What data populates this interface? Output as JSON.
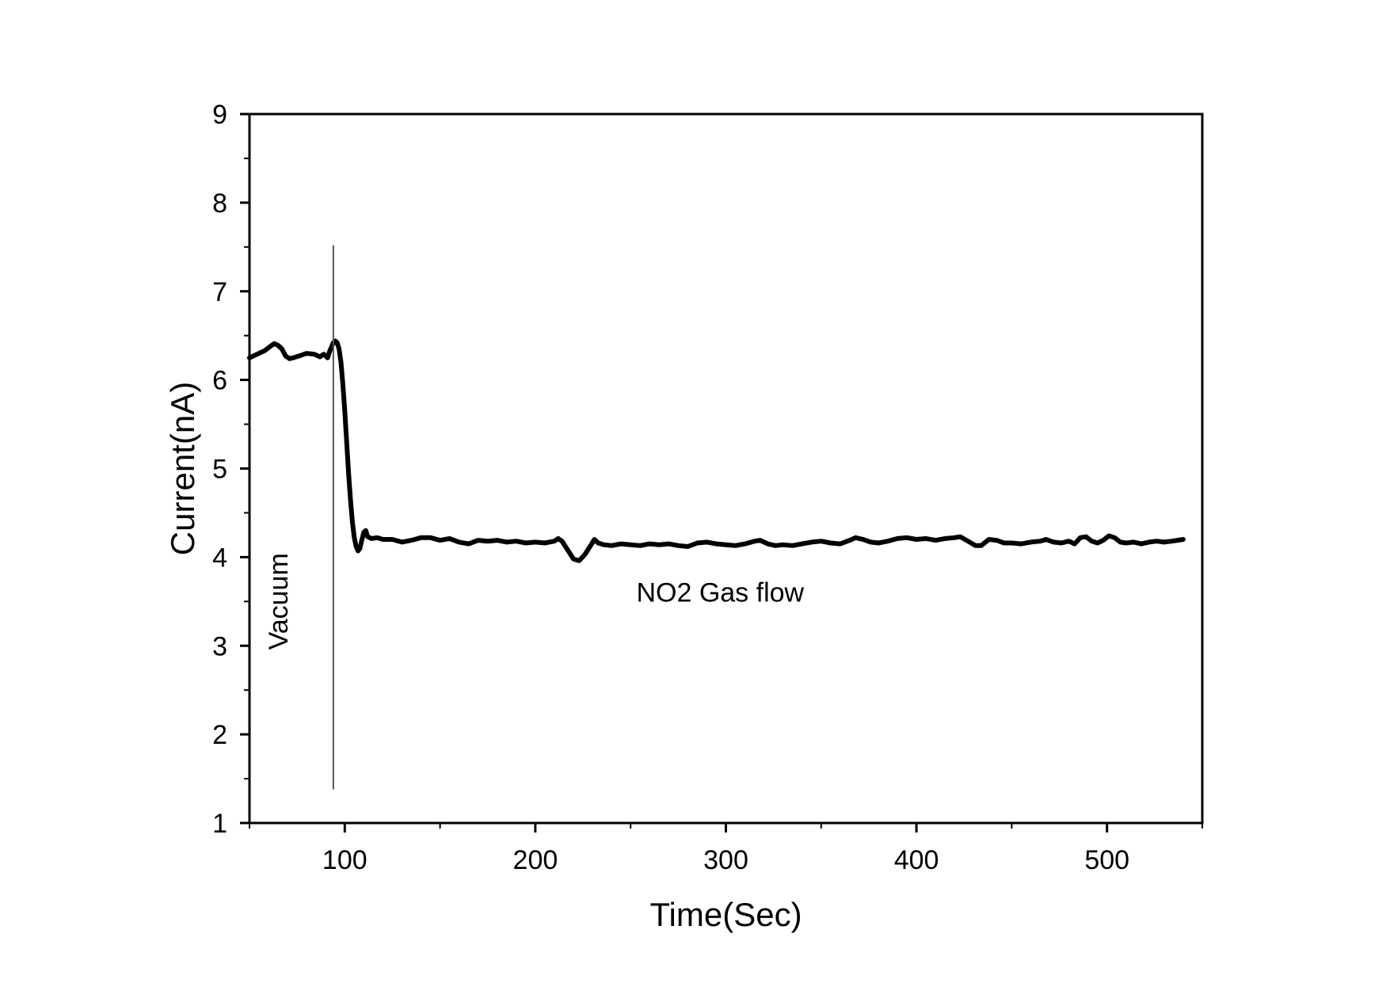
{
  "chart_data": {
    "type": "line",
    "title": "",
    "xlabel": "Time(Sec)",
    "ylabel": "Current(nA)",
    "xlim": [
      50,
      550
    ],
    "ylim": [
      1,
      9
    ],
    "xticks": [
      100,
      200,
      300,
      400,
      500
    ],
    "xticks_minor": [
      50,
      150,
      250,
      350,
      450,
      550
    ],
    "yticks": [
      1,
      2,
      3,
      4,
      5,
      6,
      7,
      8,
      9
    ],
    "grid": false,
    "legend": "none",
    "line_color": "#000000",
    "series": [
      {
        "name": "",
        "x": [
          50,
          54,
          58,
          61,
          63,
          65,
          67,
          69,
          71,
          73,
          76,
          80,
          84,
          87,
          89,
          91,
          92,
          94,
          95,
          96,
          97,
          98,
          99,
          100,
          101,
          102,
          103,
          104,
          105,
          106,
          107,
          108,
          109,
          110,
          111,
          112,
          114,
          117,
          120,
          125,
          130,
          135,
          140,
          145,
          150,
          155,
          160,
          165,
          170,
          175,
          180,
          185,
          190,
          195,
          200,
          205,
          210,
          212,
          214,
          217,
          220,
          223,
          226,
          229,
          231,
          233,
          236,
          240,
          245,
          250,
          255,
          260,
          265,
          270,
          275,
          280,
          285,
          290,
          295,
          300,
          305,
          310,
          315,
          318,
          322,
          326,
          330,
          335,
          340,
          345,
          350,
          355,
          360,
          365,
          368,
          372,
          376,
          380,
          385,
          390,
          395,
          400,
          405,
          410,
          415,
          420,
          423,
          427,
          431,
          434,
          438,
          442,
          446,
          450,
          455,
          460,
          465,
          468,
          472,
          476,
          480,
          483,
          486,
          489,
          492,
          495,
          498,
          501,
          504,
          507,
          510,
          514,
          518,
          522,
          526,
          530,
          534,
          537,
          540
        ],
        "values": [
          6.25,
          6.29,
          6.33,
          6.38,
          6.41,
          6.39,
          6.35,
          6.27,
          6.24,
          6.25,
          6.27,
          6.3,
          6.29,
          6.26,
          6.29,
          6.25,
          6.32,
          6.42,
          6.44,
          6.42,
          6.35,
          6.2,
          5.95,
          5.65,
          5.3,
          4.95,
          4.65,
          4.4,
          4.22,
          4.12,
          4.07,
          4.1,
          4.2,
          4.28,
          4.3,
          4.23,
          4.21,
          4.22,
          4.2,
          4.2,
          4.17,
          4.19,
          4.22,
          4.22,
          4.19,
          4.21,
          4.17,
          4.15,
          4.19,
          4.18,
          4.19,
          4.17,
          4.18,
          4.16,
          4.17,
          4.16,
          4.18,
          4.21,
          4.18,
          4.08,
          3.98,
          3.96,
          4.03,
          4.13,
          4.2,
          4.16,
          4.14,
          4.13,
          4.15,
          4.14,
          4.13,
          4.15,
          4.14,
          4.15,
          4.13,
          4.12,
          4.16,
          4.17,
          4.15,
          4.14,
          4.13,
          4.15,
          4.18,
          4.19,
          4.15,
          4.13,
          4.14,
          4.13,
          4.15,
          4.17,
          4.18,
          4.16,
          4.15,
          4.19,
          4.22,
          4.2,
          4.17,
          4.16,
          4.18,
          4.21,
          4.22,
          4.2,
          4.21,
          4.19,
          4.21,
          4.22,
          4.23,
          4.18,
          4.13,
          4.13,
          4.2,
          4.19,
          4.16,
          4.16,
          4.15,
          4.17,
          4.18,
          4.2,
          4.17,
          4.16,
          4.18,
          4.15,
          4.22,
          4.23,
          4.18,
          4.16,
          4.19,
          4.24,
          4.22,
          4.17,
          4.16,
          4.17,
          4.15,
          4.17,
          4.18,
          4.17,
          4.18,
          4.19,
          4.2
        ]
      }
    ],
    "annotations": [
      {
        "id": "vacuum",
        "text": "Vacuum",
        "x": 70,
        "y": 3.5,
        "orientation": "vertical"
      },
      {
        "id": "no2",
        "text": "NO2 Gas flow",
        "x": 297,
        "y": 3.5,
        "orientation": "horizontal"
      }
    ],
    "marker_line": {
      "x": 94,
      "y_from": 1.38,
      "y_to": 7.52
    }
  }
}
